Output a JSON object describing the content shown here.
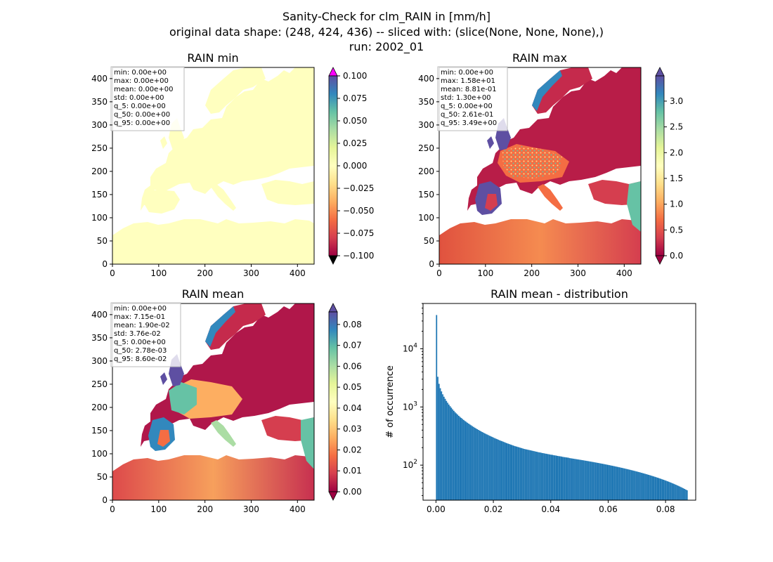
{
  "suptitle": {
    "line1": "Sanity-Check for clm_RAIN in [mm/h]",
    "line2": "original data shape: (248, 424, 436) -- sliced with: (slice(None, None, None),)",
    "line3": "run: 2002_01"
  },
  "colormap": "Spectral",
  "colors": {
    "land_min": "#ffffbf",
    "hist_bar": "#1f77b4",
    "extend_max_min_panel": "#ff00ff",
    "extend_min_min_panel": "#000000"
  },
  "chart_data": [
    {
      "type": "heatmap",
      "title": "RAIN min",
      "xticks": [
        0,
        100,
        200,
        300,
        400
      ],
      "yticks": [
        0,
        50,
        100,
        150,
        200,
        250,
        300,
        350,
        400
      ],
      "xlim": [
        0,
        436
      ],
      "ylim": [
        0,
        424
      ],
      "colorbar": {
        "vmin": -0.1,
        "vmax": 0.1,
        "ticks": [
          -0.1,
          -0.075,
          -0.05,
          -0.025,
          0.0,
          0.025,
          0.05,
          0.075,
          0.1
        ],
        "tick_labels": [
          "−0.100",
          "−0.075",
          "−0.050",
          "−0.025",
          "0.000",
          "0.025",
          "0.050",
          "0.075",
          "0.100"
        ]
      },
      "stats": [
        "min: 0.00e+00",
        "max: 0.00e+00",
        "mean: 0.00e+00",
        "std: 0.00e+00",
        "q_5: 0.00e+00",
        "q_50: 0.00e+00",
        "q_95: 0.00e+00"
      ]
    },
    {
      "type": "heatmap",
      "title": "RAIN max",
      "xticks": [
        0,
        100,
        200,
        300,
        400
      ],
      "yticks": [
        0,
        50,
        100,
        150,
        200,
        250,
        300,
        350,
        400
      ],
      "xlim": [
        0,
        436
      ],
      "ylim": [
        0,
        424
      ],
      "colorbar": {
        "vmin": 0.0,
        "vmax": 3.49,
        "ticks": [
          0.0,
          0.5,
          1.0,
          1.5,
          2.0,
          2.5,
          3.0
        ],
        "tick_labels": [
          "0.0",
          "0.5",
          "1.0",
          "1.5",
          "2.0",
          "2.5",
          "3.0"
        ]
      },
      "stats": [
        "min: 0.00e+00",
        "max: 1.58e+01",
        "mean: 8.81e-01",
        "std: 1.30e+00",
        "q_5: 0.00e+00",
        "q_50: 2.61e-01",
        "q_95: 3.49e+00"
      ]
    },
    {
      "type": "heatmap",
      "title": "RAIN mean",
      "xticks": [
        0,
        100,
        200,
        300,
        400
      ],
      "yticks": [
        0,
        50,
        100,
        150,
        200,
        250,
        300,
        350,
        400
      ],
      "xlim": [
        0,
        436
      ],
      "ylim": [
        0,
        424
      ],
      "colorbar": {
        "vmin": 0.0,
        "vmax": 0.086,
        "ticks": [
          0.0,
          0.01,
          0.02,
          0.03,
          0.04,
          0.05,
          0.06,
          0.07,
          0.08
        ],
        "tick_labels": [
          "0.00",
          "0.01",
          "0.02",
          "0.03",
          "0.04",
          "0.05",
          "0.06",
          "0.07",
          "0.08"
        ]
      },
      "stats": [
        "min: 0.00e+00",
        "max: 7.15e-01",
        "mean: 1.90e-02",
        "std: 3.76e-02",
        "q_5: 0.00e+00",
        "q_50: 2.78e-03",
        "q_95: 8.60e-02"
      ]
    },
    {
      "type": "bar",
      "title": "RAIN mean - distribution",
      "ylabel": "# of occurrence",
      "yscale": "log",
      "xlim": [
        -0.0045,
        0.0905
      ],
      "ylim": [
        25,
        60000
      ],
      "xticks": [
        0.0,
        0.02,
        0.04,
        0.06,
        0.08
      ],
      "xtick_labels": [
        "0.00",
        "0.02",
        "0.04",
        "0.06",
        "0.08"
      ],
      "yticks": [
        100,
        1000,
        10000
      ],
      "ytick_labels": [
        "10",
        "10",
        "10"
      ],
      "ytick_exponents": [
        "2",
        "3",
        "4"
      ],
      "bin_start": 0.0,
      "bin_width": 0.00043,
      "values": [
        38000,
        3300,
        2500,
        2100,
        1850,
        1650,
        1500,
        1380,
        1270,
        1180,
        1100,
        1030,
        970,
        910,
        860,
        815,
        775,
        740,
        705,
        675,
        648,
        622,
        598,
        575,
        555,
        535,
        517,
        500,
        484,
        468,
        454,
        440,
        427,
        415,
        403,
        392,
        381,
        371,
        362,
        353,
        344,
        336,
        328,
        320,
        313,
        306,
        299,
        292,
        286,
        280,
        274,
        268,
        263,
        258,
        253,
        248,
        243,
        238,
        234,
        230,
        226,
        222,
        218,
        214,
        211,
        208,
        205,
        202,
        199,
        196,
        193,
        190,
        188,
        186,
        184,
        182,
        180,
        178,
        176,
        174,
        172,
        170,
        168,
        166,
        165,
        163,
        161,
        160,
        158,
        157,
        155,
        154,
        152,
        151,
        150,
        148,
        147,
        146,
        144,
        143,
        142,
        141,
        139,
        138,
        137,
        136,
        135,
        134,
        132,
        131,
        130,
        129,
        128,
        127,
        126,
        125,
        124,
        123,
        122,
        121,
        120,
        119,
        118,
        117,
        116,
        115,
        114,
        113,
        112,
        111,
        110,
        109,
        108,
        107,
        106,
        105,
        104,
        103,
        102,
        101,
        100,
        99,
        98,
        97,
        96,
        95,
        94,
        93,
        92,
        91,
        90,
        89,
        88,
        87,
        86,
        85,
        84,
        83,
        82,
        81,
        80,
        79,
        78,
        77,
        76,
        75,
        74,
        73,
        72,
        71,
        70,
        69,
        68,
        67,
        66,
        65,
        64,
        63,
        62,
        61,
        60,
        59,
        58,
        57,
        56,
        55,
        54,
        53,
        52,
        51,
        50,
        49,
        48,
        47,
        46,
        45,
        44,
        43,
        42,
        41,
        40,
        39,
        38,
        37
      ]
    }
  ]
}
